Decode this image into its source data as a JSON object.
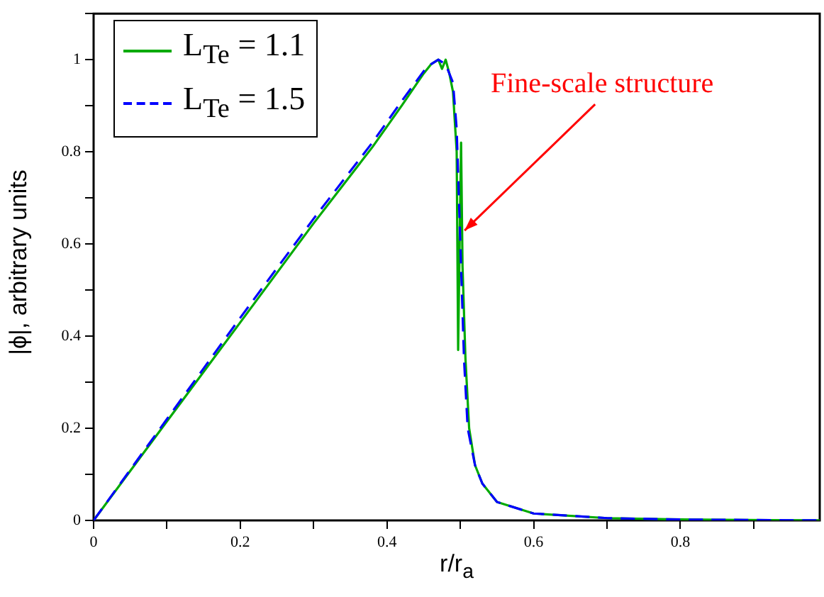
{
  "chart_data": {
    "type": "line",
    "xlabel": "r/r$_{a}$",
    "ylabel": "|ϕ|, arbitrary units",
    "xlim": [
      0,
      0.99
    ],
    "ylim": [
      0,
      1.1
    ],
    "xticks": [
      0,
      {
        "value": 0.1,
        "label": null
      },
      0.2,
      {
        "value": 0.3,
        "label": null
      },
      0.4,
      {
        "value": 0.5,
        "label": null
      },
      0.6,
      {
        "value": 0.7,
        "label": null
      },
      0.8,
      {
        "value": 0.9,
        "label": null
      }
    ],
    "yticks": [
      0,
      {
        "value": 0.1,
        "label": null
      },
      0.2,
      {
        "value": 0.3,
        "label": null
      },
      0.4,
      {
        "value": 0.5,
        "label": null
      },
      0.6,
      {
        "value": 0.7,
        "label": null
      },
      0.8,
      {
        "value": 0.9,
        "label": null
      },
      1,
      {
        "value": 1.1,
        "label": null
      }
    ],
    "grid": false,
    "legend": "top left",
    "marker": "none",
    "series": [
      {
        "name": "L$_{Te}$ = 1.1",
        "color": "#00aa00",
        "line_style": "solid",
        "x": [
          0,
          0.1,
          0.2,
          0.3,
          0.38,
          0.42,
          0.45,
          0.46,
          0.47,
          0.475,
          0.48,
          0.485,
          0.49,
          0.495,
          0.497,
          0.499,
          0.501,
          0.503,
          0.507,
          0.512,
          0.52,
          0.53,
          0.55,
          0.6,
          0.7,
          0.8,
          0.99
        ],
        "values": [
          0,
          0.215,
          0.43,
          0.645,
          0.81,
          0.9,
          0.97,
          0.99,
          1.0,
          0.98,
          1.0,
          0.97,
          0.93,
          0.8,
          0.37,
          0.6,
          0.82,
          0.55,
          0.35,
          0.2,
          0.12,
          0.08,
          0.04,
          0.015,
          0.005,
          0.002,
          0
        ]
      },
      {
        "name": "L$_{Te}$ = 1.5",
        "color": "#0000ff",
        "line_style": "dashed",
        "x": [
          0,
          0.1,
          0.2,
          0.3,
          0.38,
          0.42,
          0.45,
          0.46,
          0.47,
          0.48,
          0.49,
          0.495,
          0.5,
          0.505,
          0.51,
          0.52,
          0.53,
          0.55,
          0.6,
          0.7,
          0.8,
          0.99
        ],
        "values": [
          0,
          0.22,
          0.44,
          0.655,
          0.82,
          0.91,
          0.975,
          0.99,
          1.0,
          0.99,
          0.95,
          0.85,
          0.6,
          0.35,
          0.2,
          0.12,
          0.08,
          0.04,
          0.015,
          0.005,
          0.002,
          0
        ]
      }
    ],
    "annotations": [
      {
        "text": "Fine-scale structure",
        "x": 0.5,
        "y": 0.62
      }
    ]
  }
}
